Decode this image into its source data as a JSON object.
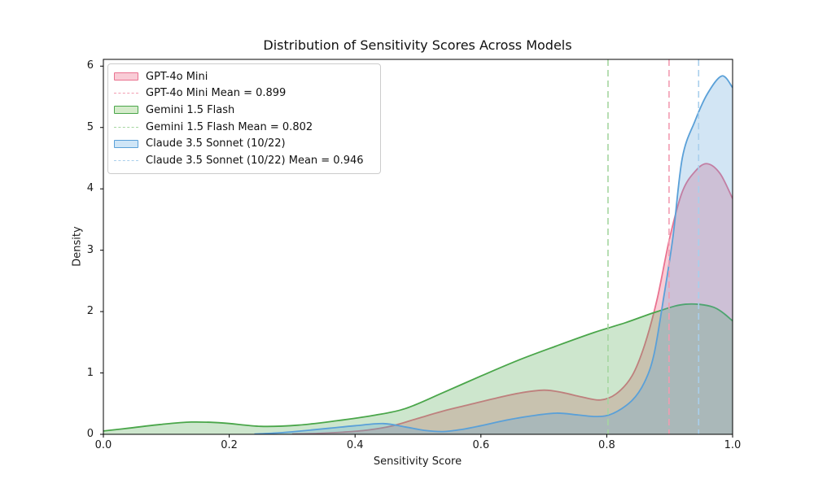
{
  "axes": {
    "x": {
      "tick_values": [
        0.0,
        0.2,
        0.4,
        0.6,
        0.8,
        1.0
      ],
      "tick_labels": [
        "0.0",
        "0.2",
        "0.4",
        "0.6",
        "0.8",
        "1.0"
      ]
    },
    "y": {
      "tick_values": [
        0,
        1,
        2,
        3,
        4,
        5,
        6
      ],
      "tick_labels": [
        "0",
        "1",
        "2",
        "3",
        "4",
        "5",
        "6"
      ]
    }
  },
  "legend": {
    "items": [
      {
        "type": "patch",
        "bg": "#f9ccd6",
        "border": "#ea7290",
        "label": "GPT-4o Mini"
      },
      {
        "type": "dash",
        "border": "#f29cb1",
        "label": "GPT-4o Mini Mean = 0.899"
      },
      {
        "type": "patch",
        "bg": "#d5ebcb",
        "border": "#4aa64a",
        "label": "Gemini 1.5 Flash"
      },
      {
        "type": "dash",
        "border": "#a5d6a0",
        "label": "Gemini 1.5 Flash Mean = 0.802"
      },
      {
        "type": "patch",
        "bg": "#cfe5f6",
        "border": "#5aa0d8",
        "label": "Claude 3.5 Sonnet (10/22)"
      },
      {
        "type": "dash",
        "border": "#a8cfec",
        "label": "Claude 3.5 Sonnet (10/22) Mean = 0.946"
      }
    ]
  },
  "chart_data": {
    "type": "area",
    "subtype": "kde-density",
    "title": "Distribution of Sensitivity Scores Across Models",
    "xlabel": "Sensitivity Score",
    "ylabel": "Density",
    "xlim": [
      0.0,
      1.0
    ],
    "ylim": [
      0.0,
      6.11
    ],
    "grid": false,
    "legend_position": "upper left",
    "series": [
      {
        "name": "GPT-4o Mini",
        "mean": 0.899,
        "line_color": "#ea7290",
        "fill_color": "#dc143c",
        "fill_opacity": 0.21,
        "mean_color": "#f29cb1",
        "points": [
          [
            0.3,
            0.005
          ],
          [
            0.34,
            0.015
          ],
          [
            0.38,
            0.035
          ],
          [
            0.42,
            0.07
          ],
          [
            0.46,
            0.14
          ],
          [
            0.5,
            0.26
          ],
          [
            0.54,
            0.38
          ],
          [
            0.58,
            0.48
          ],
          [
            0.62,
            0.58
          ],
          [
            0.66,
            0.67
          ],
          [
            0.7,
            0.72
          ],
          [
            0.73,
            0.68
          ],
          [
            0.76,
            0.61
          ],
          [
            0.79,
            0.56
          ],
          [
            0.815,
            0.66
          ],
          [
            0.84,
            0.95
          ],
          [
            0.86,
            1.45
          ],
          [
            0.88,
            2.2
          ],
          [
            0.9,
            3.2
          ],
          [
            0.92,
            3.95
          ],
          [
            0.94,
            4.28
          ],
          [
            0.959,
            4.41
          ],
          [
            0.98,
            4.25
          ],
          [
            1.0,
            3.84
          ]
        ]
      },
      {
        "name": "Gemini 1.5 Flash",
        "mean": 0.802,
        "line_color": "#4aa64a",
        "fill_color": "#4aa64a",
        "fill_opacity": 0.28,
        "mean_color": "#a5d6a0",
        "points": [
          [
            0.0,
            0.055
          ],
          [
            0.04,
            0.1
          ],
          [
            0.09,
            0.16
          ],
          [
            0.14,
            0.2
          ],
          [
            0.19,
            0.185
          ],
          [
            0.25,
            0.13
          ],
          [
            0.31,
            0.15
          ],
          [
            0.37,
            0.22
          ],
          [
            0.43,
            0.31
          ],
          [
            0.48,
            0.42
          ],
          [
            0.54,
            0.68
          ],
          [
            0.6,
            0.95
          ],
          [
            0.66,
            1.21
          ],
          [
            0.72,
            1.44
          ],
          [
            0.78,
            1.66
          ],
          [
            0.83,
            1.82
          ],
          [
            0.88,
            2.0
          ],
          [
            0.925,
            2.12
          ],
          [
            0.97,
            2.07
          ],
          [
            1.0,
            1.85
          ]
        ]
      },
      {
        "name": "Claude 3.5 Sonnet (10/22)",
        "mean": 0.946,
        "line_color": "#5aa0d8",
        "fill_color": "#5aa0d8",
        "fill_opacity": 0.27,
        "mean_color": "#a8cfec",
        "points": [
          [
            0.24,
            0.005
          ],
          [
            0.28,
            0.025
          ],
          [
            0.32,
            0.06
          ],
          [
            0.36,
            0.1
          ],
          [
            0.4,
            0.14
          ],
          [
            0.445,
            0.175
          ],
          [
            0.48,
            0.12
          ],
          [
            0.51,
            0.065
          ],
          [
            0.54,
            0.045
          ],
          [
            0.57,
            0.08
          ],
          [
            0.6,
            0.14
          ],
          [
            0.64,
            0.23
          ],
          [
            0.68,
            0.3
          ],
          [
            0.72,
            0.345
          ],
          [
            0.755,
            0.315
          ],
          [
            0.785,
            0.29
          ],
          [
            0.81,
            0.34
          ],
          [
            0.84,
            0.55
          ],
          [
            0.86,
            0.85
          ],
          [
            0.875,
            1.3
          ],
          [
            0.89,
            2.2
          ],
          [
            0.905,
            3.2
          ],
          [
            0.92,
            4.5
          ],
          [
            0.94,
            5.1
          ],
          [
            0.96,
            5.55
          ],
          [
            0.983,
            5.84
          ],
          [
            1.0,
            5.65
          ]
        ]
      }
    ]
  }
}
